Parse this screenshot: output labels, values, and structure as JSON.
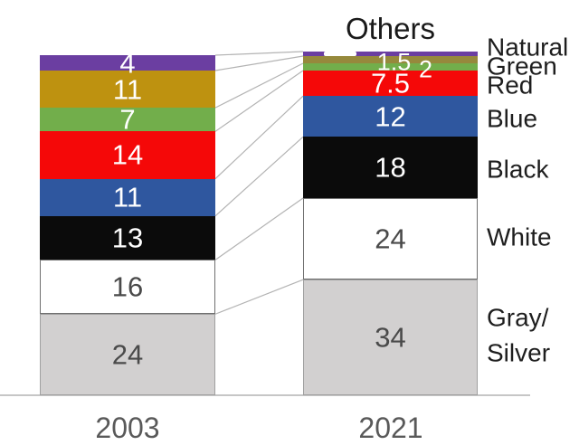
{
  "chart_data": {
    "type": "bar",
    "stacked": true,
    "title": "",
    "annotation_others": "Others",
    "categories": [
      "2003",
      "2021"
    ],
    "series": [
      {
        "name": "Others",
        "color": "#6B3EA1",
        "values": [
          4,
          1
        ],
        "labels": [
          "4",
          "—"
        ],
        "label_style": "light"
      },
      {
        "name": "Natural",
        "color": "#BE9210",
        "color_2021": "#96893C",
        "values": [
          11,
          1.5
        ],
        "labels": [
          "11",
          "1.5"
        ],
        "label_style": "light"
      },
      {
        "name": "Green",
        "color": "#72AE4B",
        "values": [
          7,
          2
        ],
        "labels": [
          "7",
          "2"
        ],
        "label_style": "light"
      },
      {
        "name": "Red",
        "color": "#F50808",
        "values": [
          14,
          7.5
        ],
        "labels": [
          "14",
          "7.5"
        ],
        "label_style": "light"
      },
      {
        "name": "Blue",
        "color": "#2F579F",
        "values": [
          11,
          12
        ],
        "labels": [
          "11",
          "12"
        ],
        "label_style": "light"
      },
      {
        "name": "Black",
        "color": "#0B0B0B",
        "values": [
          13,
          18
        ],
        "labels": [
          "13",
          "18"
        ],
        "label_style": "light"
      },
      {
        "name": "White",
        "color": "#FFFFFF",
        "border": "#6F6F6F",
        "values": [
          16,
          24
        ],
        "labels": [
          "16",
          "24"
        ],
        "label_style": "dark"
      },
      {
        "name": "Gray/Silver",
        "color": "#D2D0D0",
        "border": "#A0A0A0",
        "values": [
          24,
          34
        ],
        "labels": [
          "24",
          "34"
        ],
        "label_style": "dark"
      }
    ],
    "legend_position": "right",
    "ylim": [
      0,
      100
    ],
    "gridlines": false
  },
  "legend": {
    "items": [
      "Natural",
      "Green",
      "Red",
      "Blue",
      "Black",
      "White",
      "Gray/\nSilver"
    ]
  },
  "label_colors": {
    "light": "#FFFFFF",
    "dark": "#4A4A4A"
  },
  "line_colors": {
    "connector": "#B3B3B3",
    "axis": "#C6C6C6"
  }
}
